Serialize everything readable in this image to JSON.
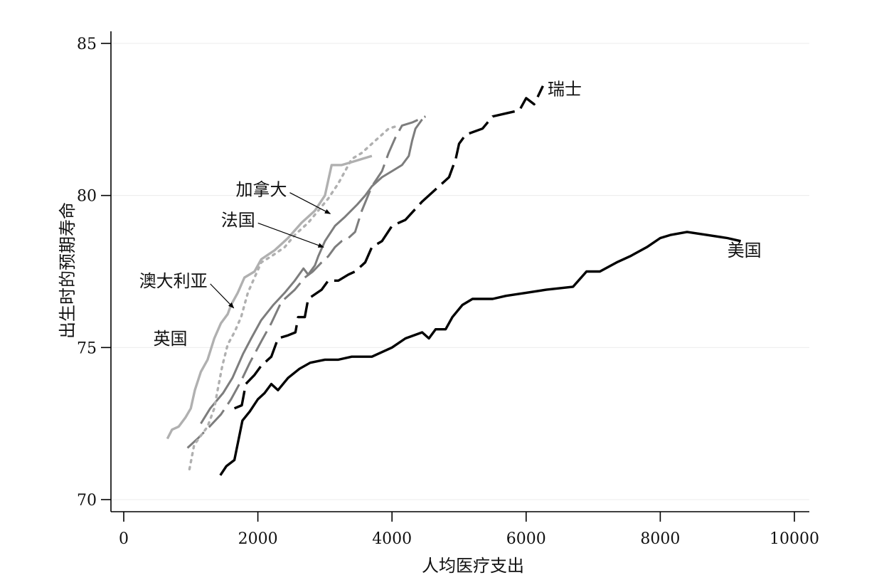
{
  "chart_data": {
    "type": "line",
    "title": "",
    "xlabel": "人均医疗支出",
    "ylabel": "出生时的预期寿命",
    "xlim": [
      0,
      10000
    ],
    "ylim": [
      70,
      85
    ],
    "xticks": [
      0,
      2000,
      4000,
      6000,
      8000,
      10000
    ],
    "yticks": [
      70,
      75,
      80,
      85
    ],
    "grid": "horizontal",
    "series": [
      {
        "name": "美国",
        "color": "#000000",
        "dash": "solid",
        "width": 3.4,
        "points": [
          [
            1440,
            70.8
          ],
          [
            1530,
            71.1
          ],
          [
            1650,
            71.3
          ],
          [
            1770,
            72.6
          ],
          [
            1880,
            72.9
          ],
          [
            2000,
            73.3
          ],
          [
            2100,
            73.5
          ],
          [
            2200,
            73.8
          ],
          [
            2300,
            73.6
          ],
          [
            2450,
            74.0
          ],
          [
            2620,
            74.3
          ],
          [
            2780,
            74.5
          ],
          [
            3000,
            74.6
          ],
          [
            3200,
            74.6
          ],
          [
            3400,
            74.7
          ],
          [
            3700,
            74.7
          ],
          [
            4000,
            75.0
          ],
          [
            4200,
            75.3
          ],
          [
            4450,
            75.5
          ],
          [
            4550,
            75.3
          ],
          [
            4650,
            75.6
          ],
          [
            4800,
            75.6
          ],
          [
            4900,
            76.0
          ],
          [
            5050,
            76.4
          ],
          [
            5200,
            76.6
          ],
          [
            5500,
            76.6
          ],
          [
            5700,
            76.7
          ],
          [
            6000,
            76.8
          ],
          [
            6300,
            76.9
          ],
          [
            6700,
            77.0
          ],
          [
            6900,
            77.5
          ],
          [
            7100,
            77.5
          ],
          [
            7350,
            77.8
          ],
          [
            7550,
            78.0
          ],
          [
            7800,
            78.3
          ],
          [
            8000,
            78.6
          ],
          [
            8150,
            78.7
          ],
          [
            8400,
            78.8
          ],
          [
            8700,
            78.7
          ],
          [
            9000,
            78.6
          ],
          [
            9200,
            78.5
          ]
        ]
      },
      {
        "name": "瑞士",
        "color": "#000000",
        "dash": "long-dash",
        "width": 3.4,
        "points": [
          [
            1650,
            73.0
          ],
          [
            1760,
            73.1
          ],
          [
            1820,
            73.8
          ],
          [
            1950,
            74.1
          ],
          [
            2050,
            74.4
          ],
          [
            2200,
            74.7
          ],
          [
            2300,
            75.3
          ],
          [
            2450,
            75.4
          ],
          [
            2560,
            75.5
          ],
          [
            2600,
            76.0
          ],
          [
            2700,
            76.0
          ],
          [
            2750,
            76.6
          ],
          [
            2950,
            76.9
          ],
          [
            3050,
            77.2
          ],
          [
            3200,
            77.2
          ],
          [
            3350,
            77.4
          ],
          [
            3450,
            77.5
          ],
          [
            3600,
            77.8
          ],
          [
            3700,
            78.3
          ],
          [
            3850,
            78.5
          ],
          [
            4000,
            79.0
          ],
          [
            4200,
            79.2
          ],
          [
            4450,
            79.8
          ],
          [
            4650,
            80.2
          ],
          [
            4850,
            80.6
          ],
          [
            4950,
            81.2
          ],
          [
            5000,
            81.7
          ],
          [
            5100,
            82.0
          ],
          [
            5350,
            82.2
          ],
          [
            5500,
            82.6
          ],
          [
            5700,
            82.7
          ],
          [
            5900,
            82.8
          ],
          [
            6000,
            83.2
          ],
          [
            6120,
            83.0
          ],
          [
            6250,
            83.6
          ]
        ]
      },
      {
        "name": "加拿大",
        "color": "#7d7d7d",
        "dash": "solid",
        "width": 3.0,
        "points": [
          [
            1150,
            72.5
          ],
          [
            1290,
            73.0
          ],
          [
            1480,
            73.5
          ],
          [
            1620,
            74.0
          ],
          [
            1780,
            74.8
          ],
          [
            1900,
            75.3
          ],
          [
            2050,
            75.9
          ],
          [
            2230,
            76.4
          ],
          [
            2400,
            76.8
          ],
          [
            2550,
            77.2
          ],
          [
            2680,
            77.6
          ],
          [
            2750,
            77.4
          ],
          [
            2850,
            77.7
          ],
          [
            2900,
            78.0
          ],
          [
            3000,
            78.5
          ],
          [
            3150,
            79.0
          ],
          [
            3300,
            79.3
          ],
          [
            3480,
            79.7
          ],
          [
            3600,
            80.0
          ],
          [
            3700,
            80.3
          ],
          [
            3850,
            80.6
          ],
          [
            4000,
            80.8
          ],
          [
            4150,
            81.0
          ],
          [
            4250,
            81.3
          ],
          [
            4300,
            81.8
          ],
          [
            4350,
            82.2
          ],
          [
            4450,
            82.5
          ]
        ]
      },
      {
        "name": "法国",
        "color": "#7d7d7d",
        "dash": "long-dash",
        "width": 3.0,
        "points": [
          [
            950,
            71.7
          ],
          [
            1100,
            72.0
          ],
          [
            1280,
            72.4
          ],
          [
            1450,
            72.8
          ],
          [
            1600,
            73.3
          ],
          [
            1750,
            73.9
          ],
          [
            1880,
            74.5
          ],
          [
            2050,
            75.2
          ],
          [
            2200,
            75.8
          ],
          [
            2350,
            76.5
          ],
          [
            2550,
            76.9
          ],
          [
            2700,
            77.3
          ],
          [
            2820,
            77.5
          ],
          [
            2950,
            77.8
          ],
          [
            3050,
            78.0
          ],
          [
            3150,
            78.3
          ],
          [
            3250,
            78.5
          ],
          [
            3350,
            78.6
          ],
          [
            3450,
            78.8
          ],
          [
            3550,
            79.5
          ],
          [
            3700,
            80.3
          ],
          [
            3850,
            80.8
          ],
          [
            3950,
            81.4
          ],
          [
            4050,
            81.9
          ],
          [
            4150,
            82.3
          ],
          [
            4300,
            82.4
          ],
          [
            4500,
            82.6
          ]
        ]
      },
      {
        "name": "澳大利亚",
        "color": "#b0b0b0",
        "dash": "solid",
        "width": 3.4,
        "points": [
          [
            650,
            72.0
          ],
          [
            720,
            72.3
          ],
          [
            820,
            72.4
          ],
          [
            920,
            72.7
          ],
          [
            1000,
            73.0
          ],
          [
            1060,
            73.6
          ],
          [
            1150,
            74.2
          ],
          [
            1250,
            74.6
          ],
          [
            1350,
            75.3
          ],
          [
            1450,
            75.8
          ],
          [
            1550,
            76.1
          ],
          [
            1600,
            76.4
          ],
          [
            1700,
            76.8
          ],
          [
            1800,
            77.3
          ],
          [
            1950,
            77.5
          ],
          [
            2050,
            77.9
          ],
          [
            2250,
            78.2
          ],
          [
            2450,
            78.6
          ],
          [
            2650,
            79.1
          ],
          [
            2850,
            79.5
          ],
          [
            3000,
            80.0
          ],
          [
            3050,
            80.5
          ],
          [
            3100,
            81.0
          ],
          [
            3250,
            81.0
          ],
          [
            3400,
            81.1
          ],
          [
            3550,
            81.2
          ],
          [
            3700,
            81.3
          ]
        ]
      },
      {
        "name": "英国",
        "color": "#b0b0b0",
        "dash": "dot",
        "width": 3.4,
        "points": [
          [
            980,
            71.0
          ],
          [
            1050,
            71.8
          ],
          [
            1150,
            72.1
          ],
          [
            1250,
            72.4
          ],
          [
            1350,
            73.0
          ],
          [
            1400,
            73.6
          ],
          [
            1470,
            74.4
          ],
          [
            1550,
            75.1
          ],
          [
            1650,
            75.5
          ],
          [
            1750,
            76.0
          ],
          [
            1850,
            76.8
          ],
          [
            1950,
            77.3
          ],
          [
            2050,
            77.8
          ],
          [
            2200,
            78.0
          ],
          [
            2400,
            78.3
          ],
          [
            2550,
            78.7
          ],
          [
            2750,
            79.1
          ],
          [
            2900,
            79.5
          ],
          [
            3050,
            79.9
          ],
          [
            3200,
            80.4
          ],
          [
            3300,
            80.8
          ],
          [
            3400,
            81.2
          ],
          [
            3550,
            81.4
          ],
          [
            3700,
            81.7
          ],
          [
            3850,
            82.0
          ],
          [
            3950,
            82.2
          ],
          [
            4100,
            82.3
          ]
        ]
      }
    ],
    "annotations": [
      {
        "label": "瑞士",
        "x": 6320,
        "y": 83.3,
        "anchor": "start"
      },
      {
        "label": "美国",
        "x": 9000,
        "y": 78.0,
        "anchor": "start"
      },
      {
        "label": "加拿大",
        "x": 1670,
        "y": 80.0,
        "anchor": "start",
        "arrow_to": [
          3080,
          79.4
        ]
      },
      {
        "label": "法国",
        "x": 1450,
        "y": 79.0,
        "anchor": "start",
        "arrow_to": [
          2980,
          78.3
        ]
      },
      {
        "label": "澳大利亚",
        "x": 230,
        "y": 77.0,
        "anchor": "start",
        "arrow_to": [
          1640,
          76.3
        ]
      },
      {
        "label": "英国",
        "x": 440,
        "y": 75.1,
        "anchor": "start"
      }
    ]
  }
}
